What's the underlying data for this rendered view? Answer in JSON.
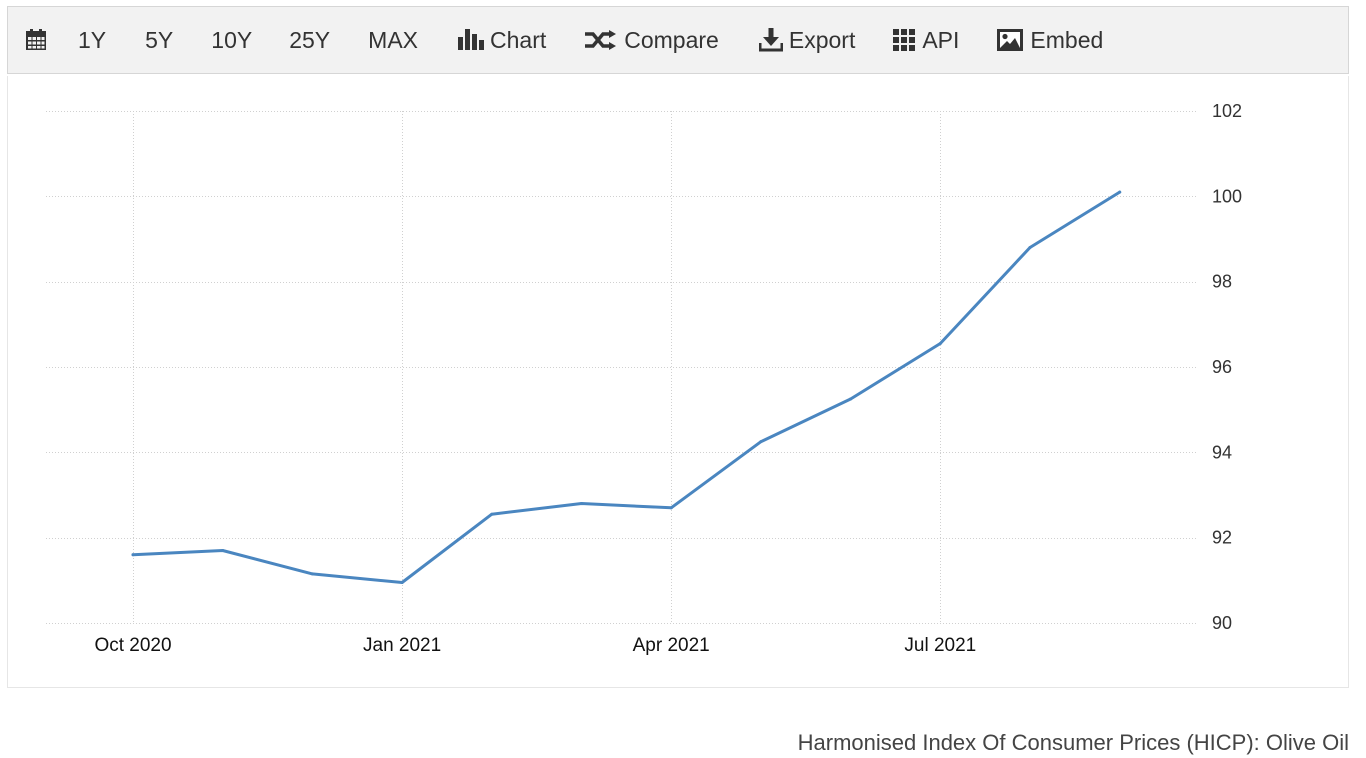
{
  "toolbar": {
    "icon_names": {
      "calendar": "calendar-icon",
      "chart": "bar-chart-icon",
      "compare": "shuffle-icon",
      "export": "download-icon",
      "api": "grid-icon",
      "embed": "image-icon"
    },
    "range_1y": "1Y",
    "range_5y": "5Y",
    "range_10y": "10Y",
    "range_25y": "25Y",
    "range_max": "MAX",
    "chart_label": "Chart",
    "compare_label": "Compare",
    "export_label": "Export",
    "api_label": "API",
    "embed_label": "Embed"
  },
  "caption": "Harmonised Index Of Consumer Prices (HICP): Olive Oil",
  "colors": {
    "line": "#4a86c0",
    "grid": "#d0d0d0",
    "toolbar_bg": "#f2f2f2"
  },
  "chart_data": {
    "type": "line",
    "x": [
      "2020-10",
      "2020-11",
      "2020-12",
      "2021-01",
      "2021-02",
      "2021-03",
      "2021-04",
      "2021-05",
      "2021-06",
      "2021-07",
      "2021-08",
      "2021-09"
    ],
    "series": [
      {
        "values": [
          91.6,
          91.7,
          91.15,
          90.95,
          92.55,
          92.8,
          92.7,
          94.25,
          95.25,
          96.55,
          98.8,
          100.1
        ]
      }
    ],
    "x_tick_labels": [
      {
        "x": "2020-10",
        "label": "Oct 2020"
      },
      {
        "x": "2021-01",
        "label": "Jan 2021"
      },
      {
        "x": "2021-04",
        "label": "Apr 2021"
      },
      {
        "x": "2021-07",
        "label": "Jul 2021"
      }
    ],
    "y_ticks": [
      90,
      92,
      94,
      96,
      98,
      100,
      102
    ],
    "ylim": [
      90,
      102
    ],
    "y_axis_side": "right",
    "grid": true,
    "legend": false
  }
}
